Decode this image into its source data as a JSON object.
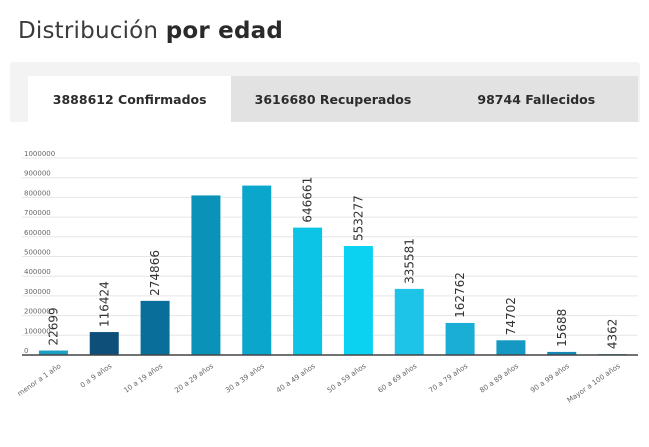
{
  "header": {
    "title_regular": "Distribución",
    "title_bold": "por edad"
  },
  "tabs": [
    {
      "label": "3888612 Confirmados",
      "active": true
    },
    {
      "label": "3616680 Recuperados",
      "active": false
    },
    {
      "label": "98744 Fallecidos",
      "active": false
    }
  ],
  "chart_data": {
    "type": "bar",
    "categories": [
      "menor a 1 año",
      "0 a 9 años",
      "10 a 19 años",
      "20 a 29 años",
      "30 a 39 años",
      "40 a 49 años",
      "50 a 59 años",
      "60 a 69 años",
      "70 a 79 años",
      "80 a 89 años",
      "90 a 99 años",
      "Mayor a 100 años"
    ],
    "values": [
      22699,
      116424,
      274866,
      810000,
      860000,
      646661,
      553277,
      335581,
      162762,
      74702,
      15688,
      4362
    ],
    "data_labels": [
      "22699",
      "116424",
      "274866",
      "",
      "",
      "646661",
      "553277",
      "335581",
      "162762",
      "74702",
      "15688",
      "4362"
    ],
    "yticks": [
      0,
      100000,
      200000,
      300000,
      400000,
      500000,
      600000,
      700000,
      800000,
      900000,
      1000000
    ],
    "ylim": [
      0,
      1000000
    ],
    "colors": [
      "#1f9fc2",
      "#0d4f78",
      "#0a6e9b",
      "#0a92b8",
      "#0aa6cb",
      "#0cc4e6",
      "#0cd2f2",
      "#1ec3e8",
      "#1aaed6",
      "#149ac2",
      "#1487b5",
      "#1482b2"
    ],
    "grid": true
  }
}
